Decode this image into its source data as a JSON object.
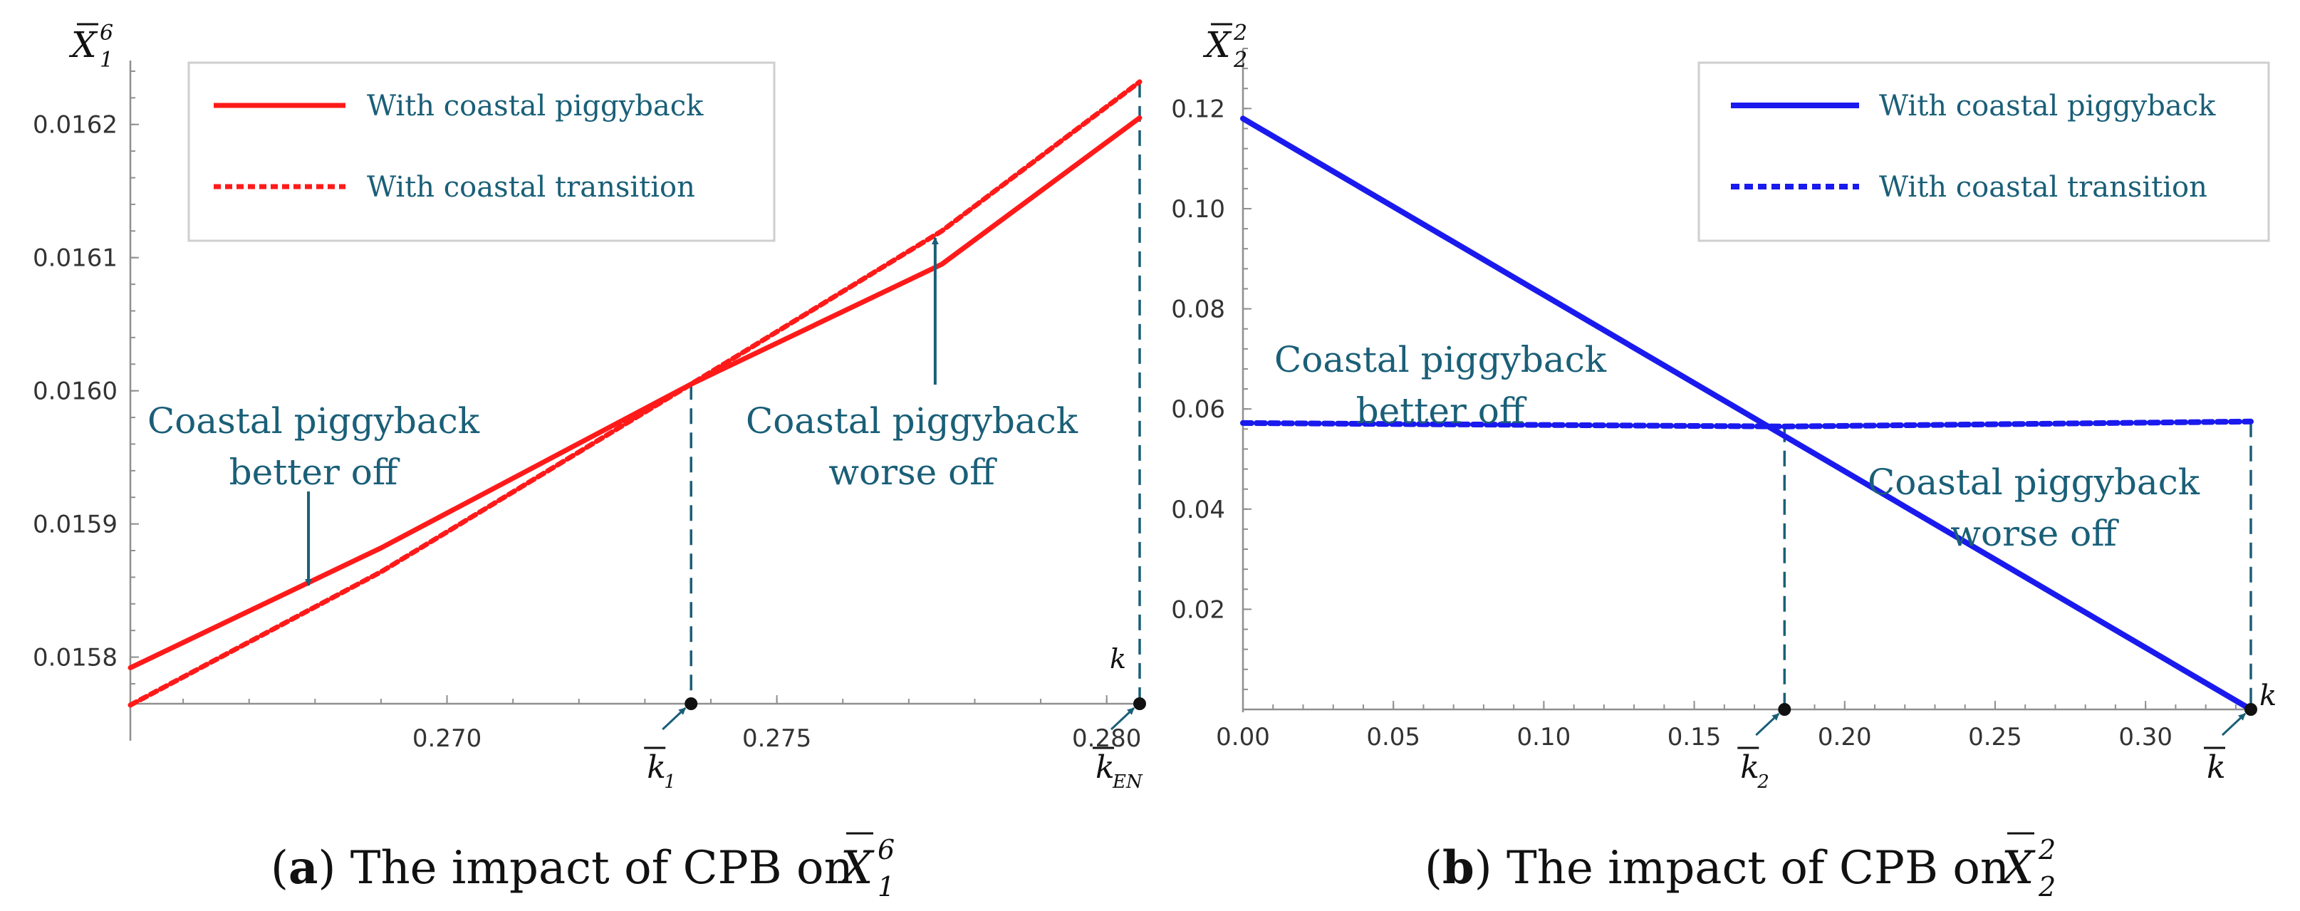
{
  "chart_data": [
    {
      "type": "line",
      "panel": "a",
      "xlim": [
        0.2652,
        0.2805
      ],
      "ylim": [
        0.015765,
        0.016248
      ],
      "x_ticks": [
        "0.270",
        "0.275",
        "0.280"
      ],
      "x_tick_values": [
        0.27,
        0.275,
        0.28
      ],
      "y_ticks": [
        "0.0158",
        "0.0159",
        "0.0160",
        "0.0161",
        "0.0162"
      ],
      "y_tick_values": [
        0.0158,
        0.0159,
        0.016,
        0.0161,
        0.0162
      ],
      "y_axis_label": {
        "base": "X",
        "sub": "1",
        "sup": "6"
      },
      "x_axis_label": "k",
      "series": [
        {
          "name": "With coastal piggyback",
          "style": "solid",
          "color": "#ff1a1a",
          "points": [
            [
              0.2652,
              0.015792
            ],
            [
              0.269,
              0.015882
            ],
            [
              0.2737,
              0.016005
            ],
            [
              0.2775,
              0.016095
            ],
            [
              0.2805,
              0.016205
            ]
          ]
        },
        {
          "name": "With coastal transition",
          "style": "dashed",
          "color": "#ff1a1a",
          "points": [
            [
              0.2652,
              0.015764
            ],
            [
              0.269,
              0.015864
            ],
            [
              0.2737,
              0.016005
            ],
            [
              0.2775,
              0.01612
            ],
            [
              0.2805,
              0.016232
            ]
          ]
        }
      ],
      "markers": [
        {
          "x": 0.2737,
          "label_base": "k",
          "label_sub": "1"
        },
        {
          "x": 0.2805,
          "label_base": "k",
          "label_sub": "EN"
        }
      ],
      "annotations": [
        {
          "lines": [
            "Coastal piggyback",
            "better off"
          ]
        },
        {
          "lines": [
            "Coastal piggyback",
            "worse off"
          ]
        }
      ],
      "caption": {
        "letter": "a",
        "text": "The impact of CPB on",
        "var_base": "X",
        "var_sub": "1",
        "var_sup": "6"
      }
    },
    {
      "type": "line",
      "panel": "b",
      "xlim": [
        0.0,
        0.335
      ],
      "ylim": [
        0.0,
        0.132
      ],
      "x_ticks": [
        "0.00",
        "0.05",
        "0.10",
        "0.15",
        "0.20",
        "0.25",
        "0.30"
      ],
      "x_tick_values": [
        0.0,
        0.05,
        0.1,
        0.15,
        0.2,
        0.25,
        0.3
      ],
      "y_ticks": [
        "0.02",
        "0.04",
        "0.06",
        "0.08",
        "0.10",
        "0.12"
      ],
      "y_tick_values": [
        0.02,
        0.04,
        0.06,
        0.08,
        0.1,
        0.12
      ],
      "y_axis_label": {
        "base": "X",
        "sub": "2",
        "sup": "2"
      },
      "x_axis_label": "k",
      "series": [
        {
          "name": "With coastal piggyback",
          "style": "solid",
          "color": "#1a1aee",
          "points": [
            [
              0.0,
              0.118
            ],
            [
              0.335,
              0.0
            ]
          ]
        },
        {
          "name": "With coastal transition",
          "style": "dashed",
          "color": "#1a1aee",
          "points": [
            [
              0.0,
              0.0572
            ],
            [
              0.18,
              0.0565
            ],
            [
              0.335,
              0.0575
            ]
          ]
        }
      ],
      "markers": [
        {
          "x": 0.18,
          "label_base": "k",
          "label_sub": "2"
        },
        {
          "x": 0.335,
          "label_base": "k",
          "label_sub": ""
        }
      ],
      "annotations": [
        {
          "lines": [
            "Coastal piggyback",
            "better off"
          ]
        },
        {
          "lines": [
            "Coastal piggyback",
            "worse off"
          ]
        }
      ],
      "caption": {
        "letter": "b",
        "text": "The impact of CPB on",
        "var_base": "X",
        "var_sub": "2",
        "var_sup": "2"
      }
    }
  ]
}
